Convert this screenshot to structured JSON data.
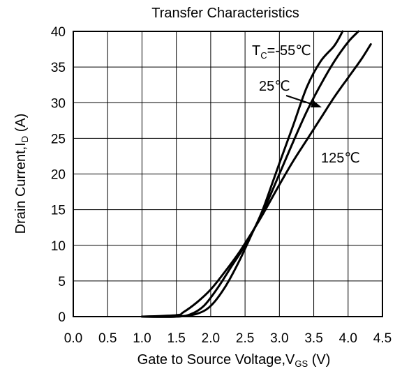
{
  "chart_data": {
    "type": "line",
    "title": "Transfer Characteristics",
    "xlabel": {
      "main": "Gate to Source Voltage,V",
      "sub": "GS",
      "unit": " (V)"
    },
    "ylabel": {
      "main": "Drain Current,I",
      "sub": "D",
      "unit": " (A)"
    },
    "xlim": [
      0.0,
      4.5
    ],
    "ylim": [
      0,
      40
    ],
    "x_ticks": [
      "0.0",
      "0.5",
      "1.0",
      "1.5",
      "2.0",
      "2.5",
      "3.0",
      "3.5",
      "4.0",
      "4.5"
    ],
    "y_ticks": [
      "0",
      "5",
      "10",
      "15",
      "20",
      "25",
      "30",
      "35",
      "40"
    ],
    "grid": true,
    "line_color": "#000000",
    "series": [
      {
        "name": "Tc=-55℃",
        "x": [
          1.0,
          1.5,
          1.8,
          2.0,
          2.2,
          2.4,
          2.6,
          2.75,
          2.9,
          3.0,
          3.2,
          3.4,
          3.6,
          3.8,
          3.92
        ],
        "y": [
          0.0,
          0.0,
          0.4,
          1.5,
          4.0,
          7.5,
          11.6,
          14.8,
          18.8,
          21.5,
          26.8,
          32.2,
          35.8,
          38.0,
          40.0
        ]
      },
      {
        "name": "25℃",
        "x": [
          1.0,
          1.5,
          1.7,
          1.9,
          2.1,
          2.3,
          2.5,
          2.75,
          3.0,
          3.2,
          3.4,
          3.6,
          3.8,
          4.0,
          4.15
        ],
        "y": [
          0.0,
          0.0,
          0.3,
          1.5,
          4.0,
          7.0,
          10.0,
          14.5,
          20.0,
          24.5,
          28.8,
          32.5,
          35.8,
          38.5,
          40.0
        ]
      },
      {
        "name": "125℃",
        "x": [
          1.0,
          1.5,
          1.6,
          1.8,
          2.0,
          2.2,
          2.4,
          2.6,
          2.75,
          3.0,
          3.2,
          3.4,
          3.6,
          3.8,
          4.0,
          4.2,
          4.33
        ],
        "y": [
          0.0,
          0.2,
          0.6,
          2.0,
          3.8,
          6.2,
          8.8,
          11.8,
          14.2,
          18.5,
          21.8,
          24.8,
          27.8,
          30.8,
          33.5,
          36.2,
          38.2
        ]
      }
    ],
    "annotations": {
      "tc_prefix": "T",
      "tc_sub": "C",
      "tc_value": "=-55℃",
      "label_25": "25℃",
      "label_125": "125℃"
    }
  }
}
